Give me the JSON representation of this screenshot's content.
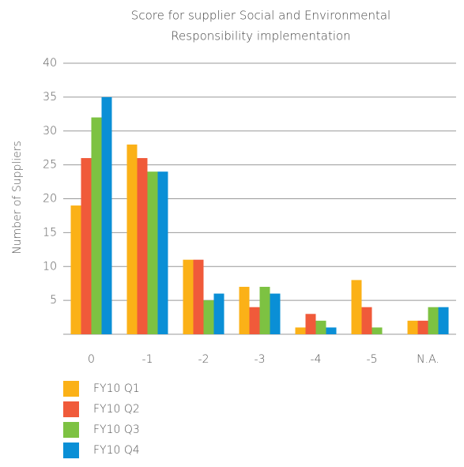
{
  "chart_data": {
    "type": "bar",
    "title": [
      "Score for supplier Social and Environmental",
      "Responsibility implementation"
    ],
    "y_label": "Number of Suppliers",
    "categories": [
      "0",
      "-1",
      "-2",
      "-3",
      "-4",
      "-5",
      "N.A."
    ],
    "series": [
      {
        "name": "FY10 Q1",
        "color": "#fbb117",
        "values": [
          19,
          28,
          11,
          7,
          1,
          8,
          2
        ]
      },
      {
        "name": "FY10 Q2",
        "color": "#f05a3a",
        "values": [
          26,
          26,
          11,
          4,
          3,
          4,
          2
        ]
      },
      {
        "name": "FY10 Q3",
        "color": "#7dc242",
        "values": [
          32,
          24,
          5,
          7,
          2,
          1,
          4
        ]
      },
      {
        "name": "FY10 Q4",
        "color": "#0a8fd6",
        "values": [
          35,
          24,
          6,
          6,
          1,
          0,
          4
        ]
      }
    ],
    "ylim": [
      0,
      40
    ],
    "yticks": [
      5,
      10,
      15,
      20,
      25,
      30,
      35,
      40
    ],
    "grid": true
  }
}
